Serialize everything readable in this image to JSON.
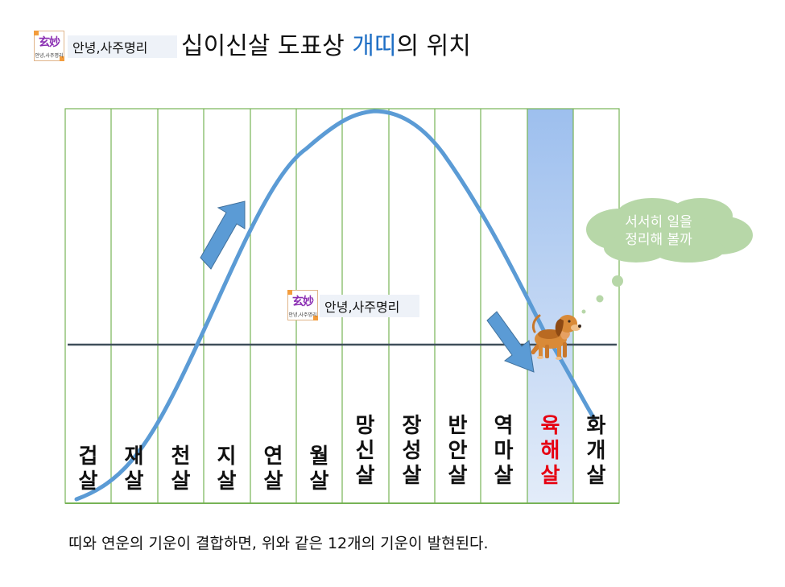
{
  "header": {
    "brand_big": "玄妙",
    "brand_small": "안녕,사주명리",
    "tag_label": "안녕,사주명리",
    "title_before": "십이신살 도표상 ",
    "title_highlight": "개띠",
    "title_after": "의 위치"
  },
  "center_tag": {
    "brand_big": "玄妙",
    "brand_small": "안녕,사주명리",
    "label": "안녕,사주명리"
  },
  "thought_bubble": {
    "line1": "서서히 일을",
    "line2": "정리해 볼까"
  },
  "columns": [
    {
      "name": "겁살",
      "lines": [
        "겁",
        "살"
      ]
    },
    {
      "name": "재살",
      "lines": [
        "재",
        "살"
      ]
    },
    {
      "name": "천살",
      "lines": [
        "천",
        "살"
      ]
    },
    {
      "name": "지살",
      "lines": [
        "지",
        "살"
      ]
    },
    {
      "name": "연살",
      "lines": [
        "연",
        "살"
      ]
    },
    {
      "name": "월살",
      "lines": [
        "월",
        "살"
      ]
    },
    {
      "name": "망신살",
      "lines": [
        "망",
        "신",
        "살"
      ]
    },
    {
      "name": "장성살",
      "lines": [
        "장",
        "성",
        "살"
      ]
    },
    {
      "name": "반안살",
      "lines": [
        "반",
        "안",
        "살"
      ]
    },
    {
      "name": "역마살",
      "lines": [
        "역",
        "마",
        "살"
      ]
    },
    {
      "name": "육해살",
      "lines": [
        "육",
        "해",
        "살"
      ],
      "highlighted": true
    },
    {
      "name": "화개살",
      "lines": [
        "화",
        "개",
        "살"
      ]
    }
  ],
  "caption": "띠와 연운의 기운이 결합하면, 위와 같은 12개의 기운이 발현된다.",
  "colors": {
    "grid": "#77b356",
    "curve": "#5b9bd5",
    "highlight_column": "#a9c8ef",
    "arrow": "#5b9bd5",
    "baseline": "#3f4f5a",
    "cloud": "#b7d7a8",
    "title_highlight": "#1f6fc5",
    "highlight_label": "#e60012"
  },
  "icons": [
    "dog-icon",
    "up-arrow-icon",
    "down-arrow-icon",
    "cloud-icon"
  ]
}
